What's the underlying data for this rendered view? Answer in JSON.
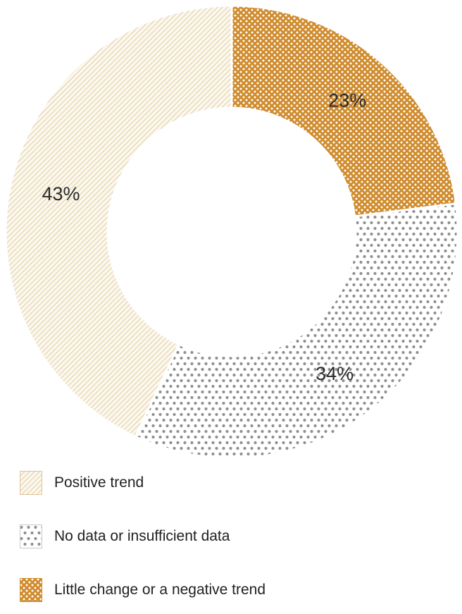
{
  "chart_data": {
    "type": "donut",
    "title": "",
    "direction": "clockwise",
    "start_angle_deg": 0,
    "legend_position": "bottom-left",
    "slices": [
      {
        "label": "Little change or a negative trend",
        "value": 23,
        "data_label": "23%",
        "pattern": "orange-dots"
      },
      {
        "label": "No data or insufficient data",
        "value": 34,
        "data_label": "34%",
        "pattern": "gray-dots"
      },
      {
        "label": "Positive trend",
        "value": 43,
        "data_label": "43%",
        "pattern": "cream-hatch"
      }
    ]
  },
  "colors": {
    "background": "#FFFFFF",
    "orange": "#D08C2E",
    "orange_dot": "#FFFFFF",
    "gray_dot": "#909094",
    "gray_dot_bg": "#FFFFFF",
    "gray_swatch_border": "#C9C9C9",
    "cream_bg": "#FBF8F0",
    "cream_hatch_line": "#E7D5AE",
    "cream_swatch_border": "#DFC493",
    "slice_label_text": "#2B2B2B",
    "legend_text": "#212121"
  }
}
